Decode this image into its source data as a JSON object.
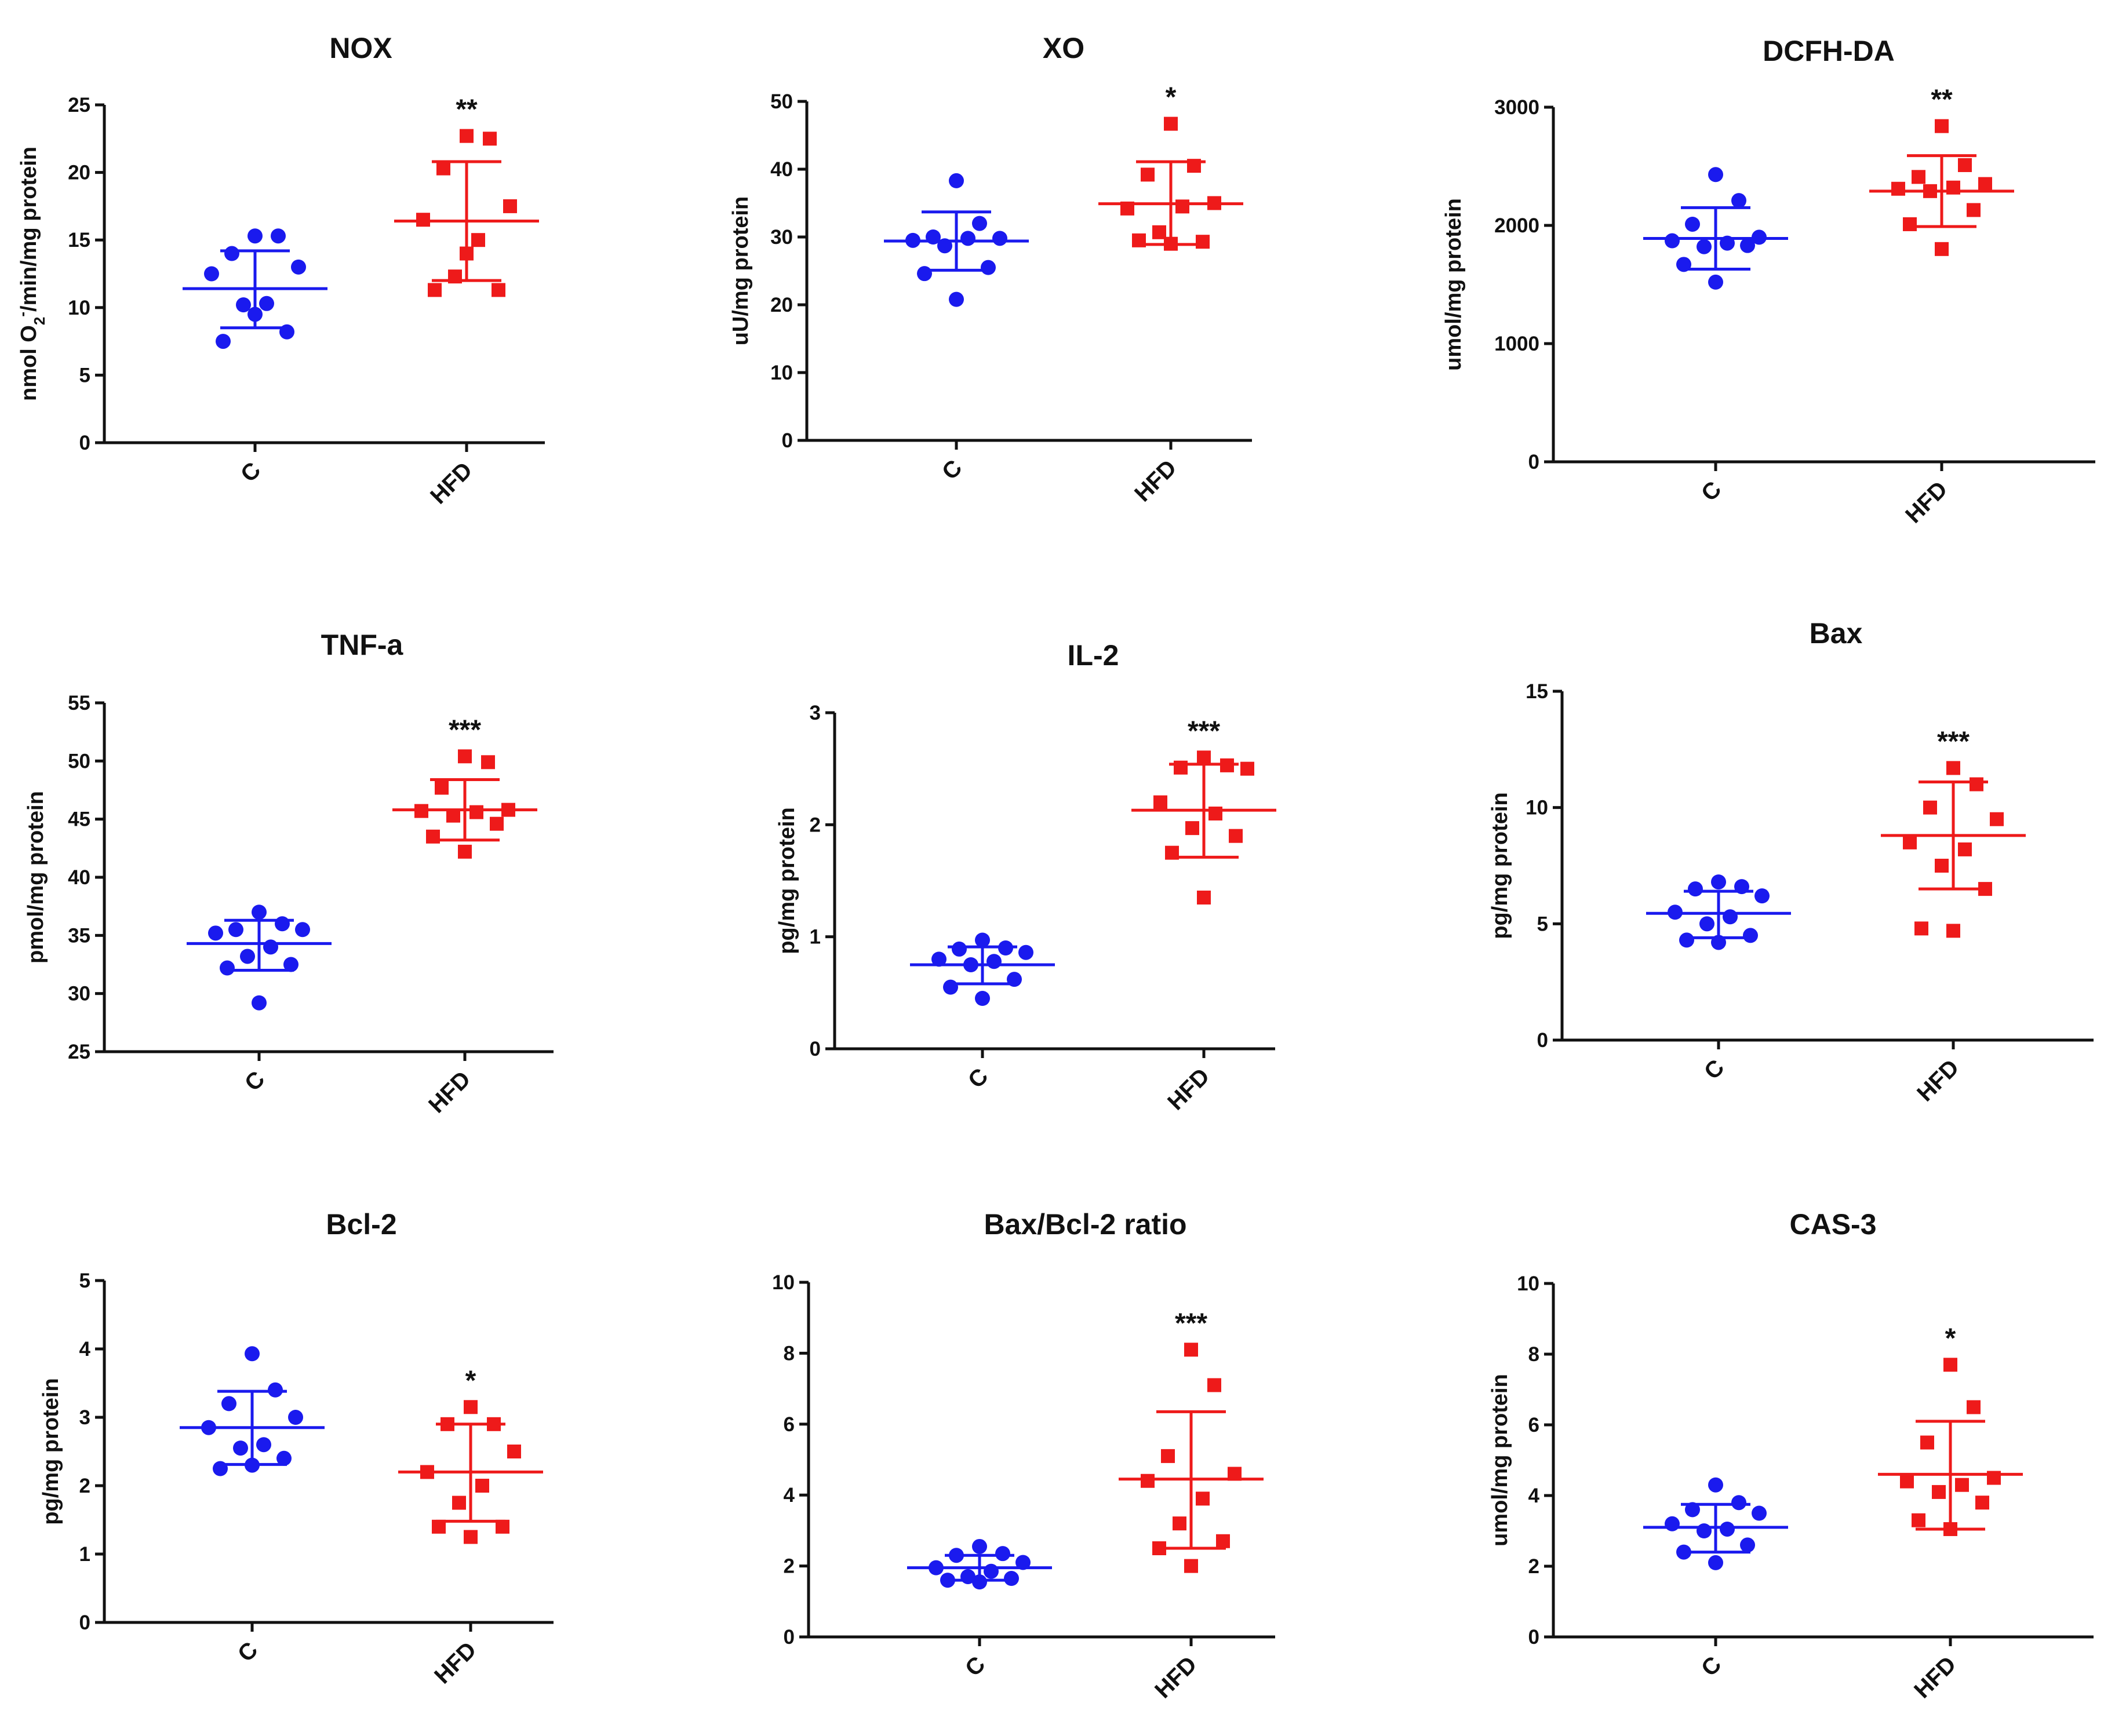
{
  "colors": {
    "control": "#1a1aee",
    "treated": "#ee1a1a",
    "axis": "#111111"
  },
  "chart_data": [
    {
      "type": "scatter",
      "title": "NOX",
      "ylabel_html": "nmol O<tspan baseline-shift=\"sub\" font-size=\"26\">2</tspan><tspan baseline-shift=\"super\" font-size=\"26\">-</tspan>/min/mg protein",
      "ylabel": "nmol O2-/min/mg protein",
      "ylim": [
        0,
        25
      ],
      "yticks": [
        0,
        5,
        10,
        15,
        20,
        25
      ],
      "categories": [
        "C",
        "HFD"
      ],
      "series": [
        {
          "name": "C",
          "marker": "circle",
          "mean": 11.4,
          "sd_low": 8.5,
          "sd_high": 14.2,
          "values": [
            15.3,
            15.3,
            14.0,
            13.0,
            12.5,
            10.3,
            10.2,
            8.2,
            7.5,
            9.5
          ]
        },
        {
          "name": "HFD",
          "marker": "square",
          "mean": 16.4,
          "sd_low": 12.0,
          "sd_high": 20.8,
          "values": [
            22.7,
            22.5,
            20.3,
            17.5,
            16.5,
            15.0,
            12.3,
            11.3,
            11.3,
            14.0
          ]
        }
      ],
      "significance": "**"
    },
    {
      "type": "scatter",
      "title": "XO",
      "ylabel": "uU/mg protein",
      "ylim": [
        0,
        50
      ],
      "yticks": [
        0,
        10,
        20,
        30,
        40,
        50
      ],
      "categories": [
        "C",
        "HFD"
      ],
      "series": [
        {
          "name": "C",
          "marker": "circle",
          "mean": 29.4,
          "sd_low": 25.1,
          "sd_high": 33.7,
          "values": [
            38.3,
            32.0,
            30.0,
            29.8,
            29.5,
            29.8,
            28.7,
            25.5,
            24.6,
            20.8
          ]
        },
        {
          "name": "HFD",
          "marker": "square",
          "mean": 34.9,
          "sd_low": 28.9,
          "sd_high": 41.1,
          "values": [
            46.7,
            40.5,
            39.2,
            35.0,
            34.2,
            34.5,
            30.7,
            29.3,
            29.5,
            29.0
          ]
        }
      ],
      "significance": "*"
    },
    {
      "type": "scatter",
      "title": "DCFH-DA",
      "ylabel": "umol/mg protein",
      "ylim": [
        0,
        3000
      ],
      "yticks": [
        0,
        1000,
        2000,
        3000
      ],
      "categories": [
        "C",
        "HFD"
      ],
      "series": [
        {
          "name": "C",
          "marker": "circle",
          "mean": 1890,
          "sd_low": 1630,
          "sd_high": 2150,
          "values": [
            2430,
            2210,
            2010,
            1900,
            1870,
            1850,
            1820,
            1830,
            1670,
            1520
          ]
        },
        {
          "name": "HFD",
          "marker": "square",
          "mean": 2290,
          "sd_low": 1990,
          "sd_high": 2590,
          "values": [
            2840,
            2510,
            2410,
            2350,
            2310,
            2320,
            2290,
            2130,
            2010,
            1800
          ]
        }
      ],
      "significance": "**"
    },
    {
      "type": "scatter",
      "title": "TNF-a",
      "ylabel": "pmol/mg protein",
      "ylim": [
        25,
        55
      ],
      "yticks": [
        25,
        30,
        35,
        40,
        45,
        50,
        55
      ],
      "categories": [
        "C",
        "HFD"
      ],
      "series": [
        {
          "name": "C",
          "marker": "circle",
          "mean": 34.3,
          "sd_low": 32.0,
          "sd_high": 36.3,
          "values": [
            37.0,
            36.0,
            35.5,
            35.5,
            35.2,
            34.0,
            33.2,
            32.5,
            32.2,
            29.2
          ]
        },
        {
          "name": "HFD",
          "marker": "square",
          "mean": 45.8,
          "sd_low": 43.2,
          "sd_high": 48.4,
          "values": [
            50.4,
            49.9,
            47.7,
            45.8,
            45.7,
            45.6,
            45.3,
            44.6,
            43.5,
            42.2
          ]
        }
      ],
      "significance": "***"
    },
    {
      "type": "scatter",
      "title": "IL-2",
      "ylabel": "pg/mg protein",
      "ylim": [
        0,
        3
      ],
      "yticks": [
        0,
        1,
        2,
        3
      ],
      "categories": [
        "C",
        "HFD"
      ],
      "series": [
        {
          "name": "C",
          "marker": "circle",
          "mean": 0.75,
          "sd_low": 0.58,
          "sd_high": 0.91,
          "values": [
            0.97,
            0.9,
            0.89,
            0.86,
            0.8,
            0.78,
            0.75,
            0.62,
            0.55,
            0.45
          ]
        },
        {
          "name": "HFD",
          "marker": "square",
          "mean": 2.13,
          "sd_low": 1.71,
          "sd_high": 2.54,
          "values": [
            2.6,
            2.53,
            2.51,
            2.5,
            2.2,
            2.1,
            1.97,
            1.9,
            1.75,
            1.35
          ]
        }
      ],
      "significance": "***"
    },
    {
      "type": "scatter",
      "title": "Bax",
      "ylabel": "pg/mg protein",
      "ylim": [
        0,
        15
      ],
      "yticks": [
        0,
        5,
        10,
        15
      ],
      "categories": [
        "C",
        "HFD"
      ],
      "series": [
        {
          "name": "C",
          "marker": "circle",
          "mean": 5.45,
          "sd_low": 4.4,
          "sd_high": 6.4,
          "values": [
            6.8,
            6.6,
            6.5,
            6.2,
            5.5,
            5.3,
            5.0,
            4.5,
            4.3,
            4.2
          ]
        },
        {
          "name": "HFD",
          "marker": "square",
          "mean": 8.8,
          "sd_low": 6.5,
          "sd_high": 11.1,
          "values": [
            11.7,
            11.0,
            10.0,
            9.5,
            8.5,
            8.2,
            7.5,
            6.5,
            4.8,
            4.7
          ]
        }
      ],
      "significance": "***"
    },
    {
      "type": "scatter",
      "title": "Bcl-2",
      "ylabel": "pg/mg protein",
      "ylim": [
        0,
        5
      ],
      "yticks": [
        0,
        1,
        2,
        3,
        4,
        5
      ],
      "categories": [
        "C",
        "HFD"
      ],
      "series": [
        {
          "name": "C",
          "marker": "circle",
          "mean": 2.85,
          "sd_low": 2.31,
          "sd_high": 3.38,
          "values": [
            3.93,
            3.4,
            3.2,
            3.0,
            2.85,
            2.6,
            2.55,
            2.4,
            2.25,
            2.3
          ]
        },
        {
          "name": "HFD",
          "marker": "square",
          "mean": 2.2,
          "sd_low": 1.48,
          "sd_high": 2.9,
          "values": [
            3.15,
            2.9,
            2.9,
            2.5,
            2.2,
            2.0,
            1.75,
            1.4,
            1.4,
            1.25
          ]
        }
      ],
      "significance": "*"
    },
    {
      "type": "scatter",
      "title": "Bax/Bcl-2 ratio",
      "ylabel": "",
      "ylim": [
        0,
        10
      ],
      "yticks": [
        0,
        2,
        4,
        6,
        8,
        10
      ],
      "categories": [
        "C",
        "HFD"
      ],
      "series": [
        {
          "name": "C",
          "marker": "circle",
          "mean": 1.95,
          "sd_low": 1.6,
          "sd_high": 2.3,
          "values": [
            2.55,
            2.35,
            2.3,
            2.1,
            1.95,
            1.85,
            1.7,
            1.65,
            1.6,
            1.55
          ]
        },
        {
          "name": "HFD",
          "marker": "square",
          "mean": 4.45,
          "sd_low": 2.5,
          "sd_high": 6.35,
          "values": [
            8.1,
            7.1,
            5.1,
            4.6,
            4.4,
            3.9,
            3.2,
            2.7,
            2.5,
            2.0
          ]
        }
      ],
      "significance": "***"
    },
    {
      "type": "scatter",
      "title": "CAS-3",
      "ylabel": "umol/mg protein",
      "ylim": [
        0,
        10
      ],
      "yticks": [
        0,
        2,
        4,
        6,
        8,
        10
      ],
      "categories": [
        "C",
        "HFD"
      ],
      "series": [
        {
          "name": "C",
          "marker": "circle",
          "mean": 3.1,
          "sd_low": 2.4,
          "sd_high": 3.75,
          "values": [
            4.3,
            3.8,
            3.6,
            3.5,
            3.2,
            3.05,
            3.0,
            2.6,
            2.4,
            2.1
          ]
        },
        {
          "name": "HFD",
          "marker": "square",
          "mean": 4.6,
          "sd_low": 3.05,
          "sd_high": 6.1,
          "values": [
            7.7,
            6.5,
            5.5,
            4.5,
            4.4,
            4.3,
            4.1,
            3.8,
            3.3,
            3.05
          ]
        }
      ],
      "significance": "*"
    }
  ]
}
